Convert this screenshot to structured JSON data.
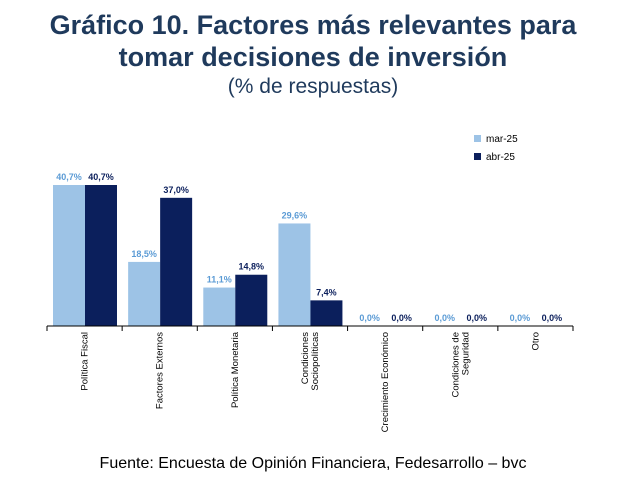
{
  "chart_data": {
    "type": "bar",
    "title_line1": "Gráfico 10. Factores más relevantes para",
    "title_line2": "tomar decisiones de inversión",
    "subtitle": "(% de respuestas)",
    "source": "Fuente: Encuesta de Opinión Financiera, Fedesarrollo – bvc",
    "categories": [
      [
        "Política Fiscal"
      ],
      [
        "Factores Externos"
      ],
      [
        "Política Monetaria"
      ],
      [
        "Condiciones",
        "Sociopolíticas"
      ],
      [
        "Crecimiento Económico"
      ],
      [
        "Condiciones de",
        "Seguridad"
      ],
      [
        "Otro"
      ]
    ],
    "series": [
      {
        "name": "mar-25",
        "color": "#9dc3e6",
        "label_color": "#5b9bd5",
        "values": [
          40.7,
          18.5,
          11.1,
          29.6,
          0.0,
          0.0,
          0.0
        ],
        "labels": [
          "40,7%",
          "18,5%",
          "11,1%",
          "29,6%",
          "0,0%",
          "0,0%",
          "0,0%"
        ]
      },
      {
        "name": "abr-25",
        "color": "#0b1f5c",
        "label_color": "#0b1f5c",
        "values": [
          40.7,
          37.0,
          14.8,
          7.4,
          0.0,
          0.0,
          0.0
        ],
        "labels": [
          "40,7%",
          "37,0%",
          "14,8%",
          "7,4%",
          "0,0%",
          "0,0%",
          "0,0%"
        ]
      }
    ],
    "ylim": [
      0,
      45
    ],
    "legend": "top-right",
    "grid": false
  }
}
